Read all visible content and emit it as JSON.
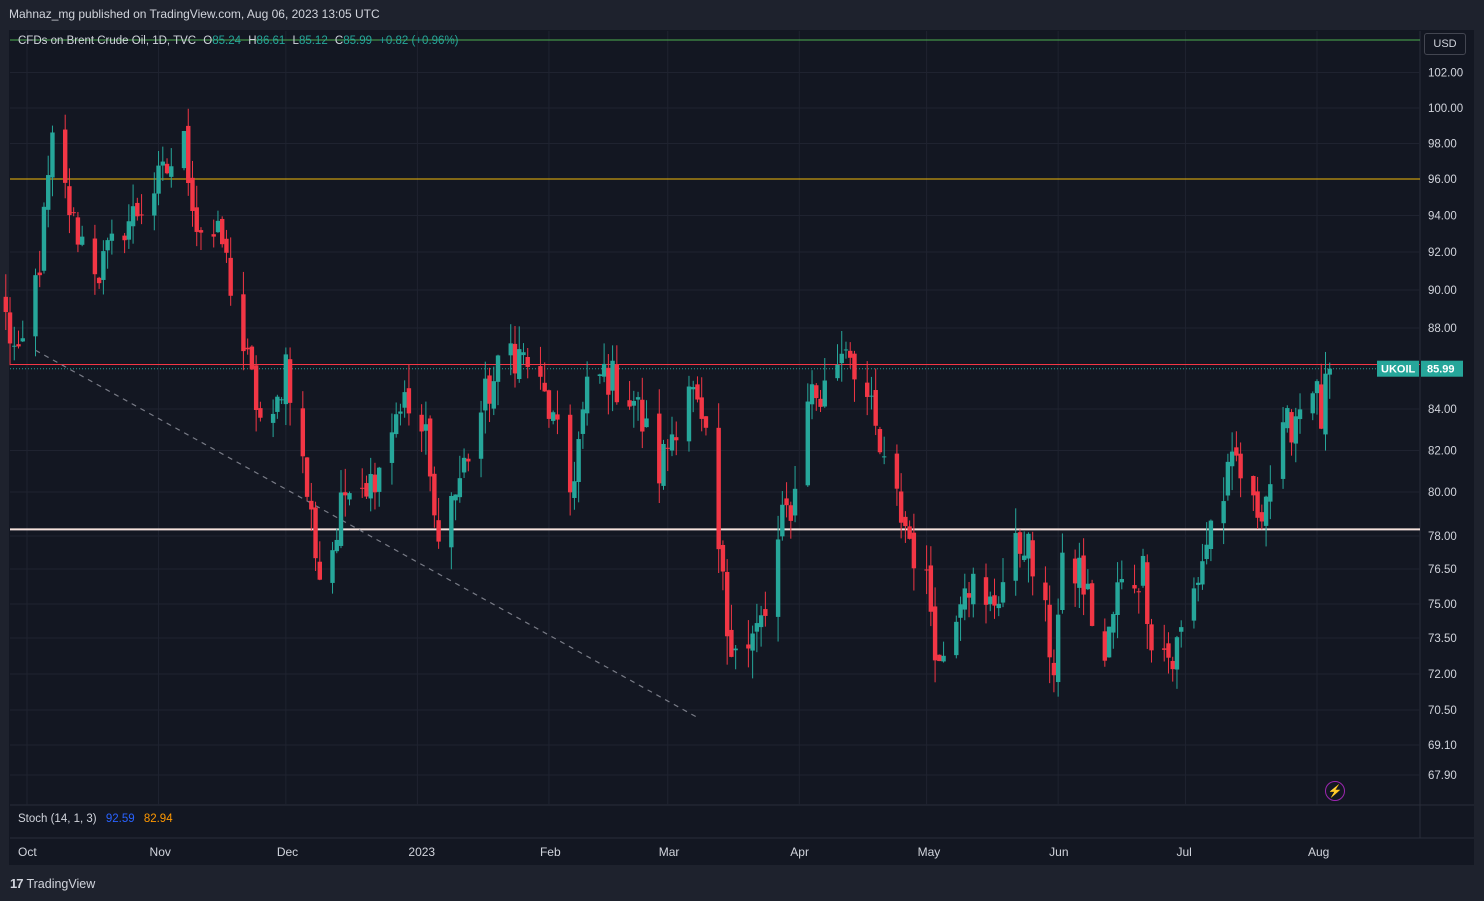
{
  "header": {
    "published": "Mahnaz_mg published on TradingView.com, Aug 06, 2023 13:05 UTC"
  },
  "legend": {
    "symbol": "CFDs on Brent Crude Oil, 1D, TVC",
    "o_label": "O",
    "o_value": "85.24",
    "h_label": "H",
    "h_value": "86.61",
    "l_label": "L",
    "l_value": "85.12",
    "c_label": "C",
    "c_value": "85.99",
    "change": "+0.82 (+0.96%)"
  },
  "currency_button": "USD",
  "indicator": {
    "name": "Stoch (14, 1, 3)",
    "k_value": "92.59",
    "d_value": "82.94",
    "k_color": "#2962ff",
    "d_color": "#ff9800"
  },
  "footer": {
    "logo_mark": "17",
    "logo_text": "TradingView"
  },
  "colors": {
    "up": "#26a69a",
    "down": "#f23645",
    "background": "#131722",
    "grid": "#1f2330",
    "resistance_line": "#f23645",
    "support_line": "#f5e1dc",
    "level_96_line": "#f0b90b",
    "top_line": "#4caf50"
  },
  "chart_data": {
    "type": "candlestick",
    "symbol": "UKOIL",
    "last_price": 85.99,
    "last_price_label": "85.99",
    "y_ticks": [
      102.0,
      100.0,
      98.0,
      96.0,
      94.0,
      92.0,
      90.0,
      88.0,
      84.0,
      82.0,
      80.0,
      78.0,
      76.5,
      75.0,
      73.5,
      72.0,
      70.5,
      69.1,
      67.9
    ],
    "y_tick_labels": [
      "102.00",
      "100.00",
      "98.00",
      "96.00",
      "94.00",
      "92.00",
      "90.00",
      "88.00",
      "84.00",
      "82.00",
      "80.00",
      "78.00",
      "76.50",
      "75.00",
      "73.50",
      "72.00",
      "70.50",
      "69.10",
      "67.90"
    ],
    "x_ticks": [
      {
        "label": "Oct",
        "date": "2022-10-01"
      },
      {
        "label": "Nov",
        "date": "2022-11-01"
      },
      {
        "label": "Dec",
        "date": "2022-12-01"
      },
      {
        "label": "2023",
        "date": "2023-01-01"
      },
      {
        "label": "Feb",
        "date": "2023-02-01"
      },
      {
        "label": "Mar",
        "date": "2023-03-01"
      },
      {
        "label": "Apr",
        "date": "2023-04-01"
      },
      {
        "label": "May",
        "date": "2023-05-01"
      },
      {
        "label": "Jun",
        "date": "2023-06-01"
      },
      {
        "label": "Jul",
        "date": "2023-07-01"
      },
      {
        "label": "Aug",
        "date": "2023-08-01"
      }
    ],
    "horizontal_levels": [
      {
        "name": "resistance",
        "value": 86.2,
        "color": "#f23645"
      },
      {
        "name": "support",
        "value": 78.3,
        "color": "#f5e1dc"
      },
      {
        "name": "level-96",
        "value": 96.0,
        "color": "#f0b90b"
      },
      {
        "name": "top-line",
        "value": 104.7,
        "color": "#4caf50"
      }
    ],
    "trendline": {
      "from": {
        "date": "2022-10-03",
        "price": 86.9
      },
      "to": {
        "date": "2023-03-08",
        "price": 70.2
      }
    },
    "anchors": [
      [
        "2022-09-26",
        88.5
      ],
      [
        "2022-09-29",
        86.0
      ],
      [
        "2022-10-04",
        91.5
      ],
      [
        "2022-10-07",
        97.9
      ],
      [
        "2022-10-12",
        93.5
      ],
      [
        "2022-10-18",
        91.0
      ],
      [
        "2022-10-24",
        93.5
      ],
      [
        "2022-10-28",
        94.5
      ],
      [
        "2022-11-03",
        96.5
      ],
      [
        "2022-11-07",
        98.0
      ],
      [
        "2022-11-10",
        93.5
      ],
      [
        "2022-11-16",
        92.5
      ],
      [
        "2022-11-21",
        87.0
      ],
      [
        "2022-11-25",
        83.5
      ],
      [
        "2022-11-28",
        83.0
      ],
      [
        "2022-12-01",
        86.5
      ],
      [
        "2022-12-06",
        80.0
      ],
      [
        "2022-12-09",
        76.3
      ],
      [
        "2022-12-13",
        78.0
      ],
      [
        "2022-12-16",
        81.0
      ],
      [
        "2022-12-21",
        80.5
      ],
      [
        "2022-12-28",
        84.5
      ],
      [
        "2023-01-03",
        82.5
      ],
      [
        "2023-01-05",
        78.5
      ],
      [
        "2023-01-10",
        80.0
      ],
      [
        "2023-01-17",
        84.5
      ],
      [
        "2023-01-23",
        87.0
      ],
      [
        "2023-01-27",
        86.3
      ],
      [
        "2023-02-01",
        84.0
      ],
      [
        "2023-02-06",
        80.0
      ],
      [
        "2023-02-10",
        84.8
      ],
      [
        "2023-02-14",
        85.8
      ],
      [
        "2023-02-21",
        84.5
      ],
      [
        "2023-02-27",
        81.0
      ],
      [
        "2023-03-06",
        85.5
      ],
      [
        "2023-03-10",
        82.0
      ],
      [
        "2023-03-15",
        74.0
      ],
      [
        "2023-03-20",
        73.0
      ],
      [
        "2023-03-24",
        74.5
      ],
      [
        "2023-03-28",
        78.5
      ],
      [
        "2023-03-31",
        80.0
      ],
      [
        "2023-04-03",
        85.0
      ],
      [
        "2023-04-06",
        84.5
      ],
      [
        "2023-04-12",
        87.5
      ],
      [
        "2023-04-17",
        84.5
      ],
      [
        "2023-04-21",
        81.0
      ],
      [
        "2023-04-26",
        78.5
      ],
      [
        "2023-05-02",
        75.0
      ],
      [
        "2023-05-04",
        72.3
      ],
      [
        "2023-05-10",
        76.5
      ],
      [
        "2023-05-15",
        74.5
      ],
      [
        "2023-05-19",
        76.0
      ],
      [
        "2023-05-24",
        78.0
      ],
      [
        "2023-05-26",
        76.5
      ],
      [
        "2023-05-31",
        72.5
      ],
      [
        "2023-06-02",
        76.2
      ],
      [
        "2023-06-06",
        76.5
      ],
      [
        "2023-06-12",
        72.5
      ],
      [
        "2023-06-15",
        75.5
      ],
      [
        "2023-06-21",
        76.5
      ],
      [
        "2023-06-23",
        73.8
      ],
      [
        "2023-06-28",
        72.5
      ],
      [
        "2023-07-03",
        75.5
      ],
      [
        "2023-07-07",
        78.5
      ],
      [
        "2023-07-13",
        81.5
      ],
      [
        "2023-07-17",
        79.0
      ],
      [
        "2023-07-20",
        80.0
      ],
      [
        "2023-07-25",
        83.0
      ],
      [
        "2023-07-31",
        85.5
      ],
      [
        "2023-08-02",
        83.5
      ],
      [
        "2023-08-04",
        85.99
      ]
    ]
  }
}
